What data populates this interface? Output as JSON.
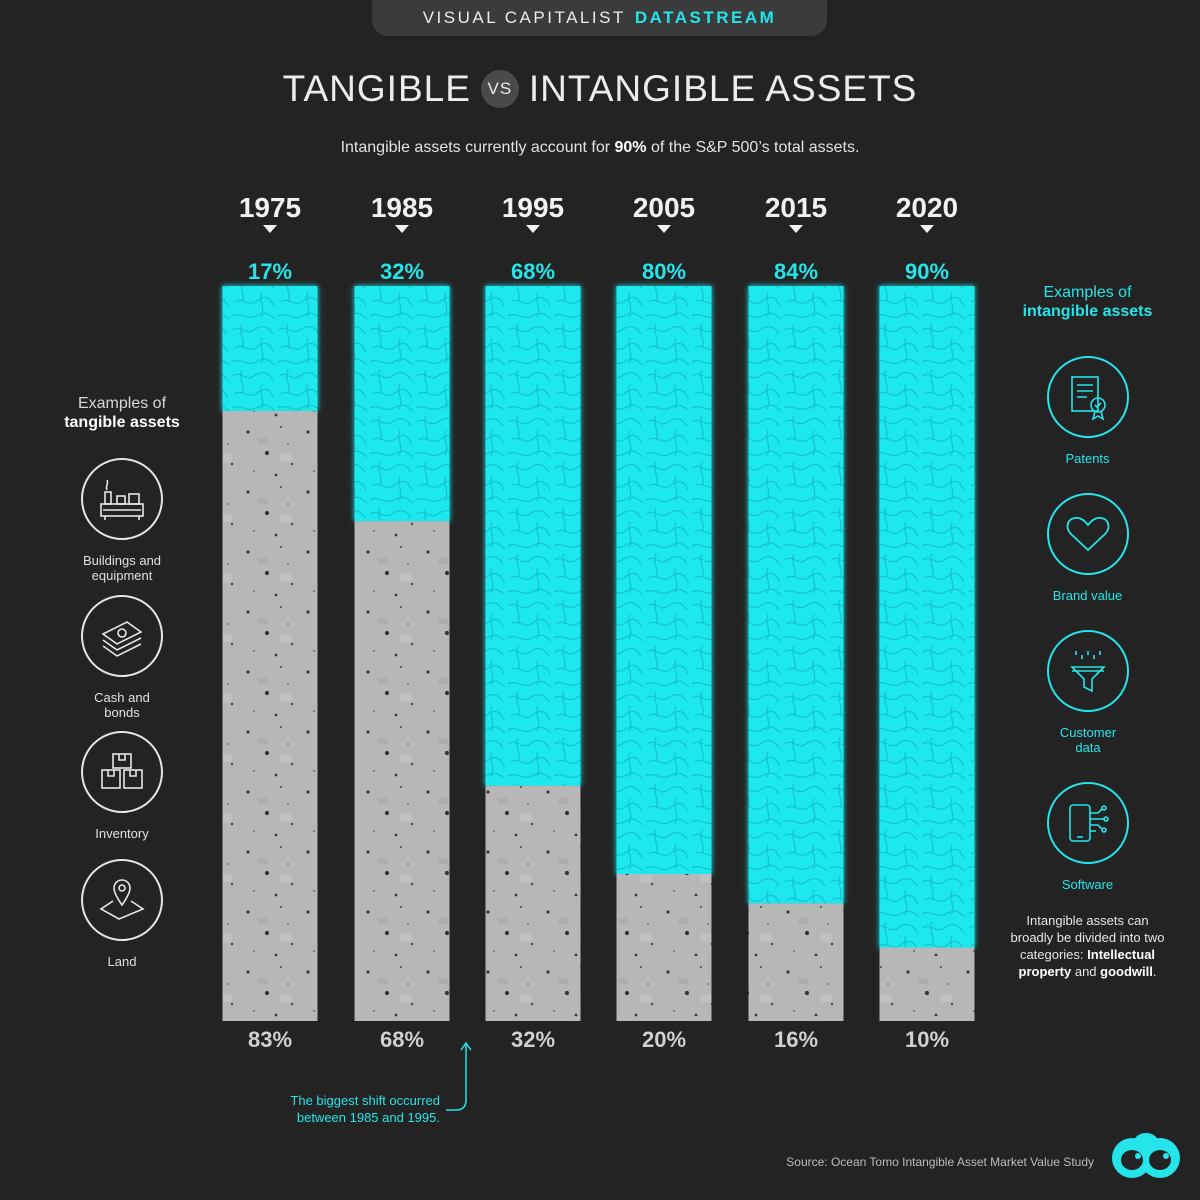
{
  "header": {
    "brand": "VISUAL CAPITALIST",
    "brand_accent": "DATASTREAM"
  },
  "title": {
    "part1": "TANGIBLE",
    "vs": "VS",
    "part2": "INTANGIBLE ASSETS"
  },
  "subtitle": {
    "pre": "Intangible assets currently account for ",
    "bold": "90%",
    "post": " of the S&P 500’s total assets."
  },
  "chart_data": {
    "type": "bar",
    "stacked": true,
    "categories": [
      "1975",
      "1985",
      "1995",
      "2005",
      "2015",
      "2020"
    ],
    "series": [
      {
        "values": [
          17,
          32,
          68,
          80,
          84,
          90
        ]
      },
      {
        "values": [
          83,
          68,
          32,
          20,
          16,
          10
        ]
      }
    ],
    "top_labels": [
      "17%",
      "32%",
      "68%",
      "80%",
      "84%",
      "90%"
    ],
    "bottom_labels": [
      "83%",
      "68%",
      "32%",
      "20%",
      "16%",
      "10%"
    ],
    "ylim": [
      0,
      100
    ],
    "colors": {
      "intangible": "#1ee8ee",
      "tangible": "#b9b9b9"
    }
  },
  "tangible": {
    "heading_line1": "Examples of",
    "heading_bold": "tangible assets",
    "items": [
      {
        "icon": "factory-icon",
        "label": "Buildings and equipment"
      },
      {
        "icon": "cash-icon",
        "label": "Cash and bonds"
      },
      {
        "icon": "boxes-icon",
        "label": "Inventory"
      },
      {
        "icon": "map-pin-icon",
        "label": "Land"
      }
    ]
  },
  "intangible": {
    "heading_line1": "Examples of",
    "heading_bold": "intangible assets",
    "items": [
      {
        "icon": "certificate-icon",
        "label": "Patents"
      },
      {
        "icon": "heart-icon",
        "label": "Brand value"
      },
      {
        "icon": "funnel-icon",
        "label": "Customer data"
      },
      {
        "icon": "phone-circuit-icon",
        "label": "Software"
      }
    ]
  },
  "note": {
    "text1": "Intangible assets can broadly be divided into two categories: ",
    "bold1": "Intellectual property",
    "text2": " and ",
    "bold2": "goodwill",
    "text3": "."
  },
  "shift_note": "The biggest shift occurred between 1985 and 1995.",
  "source": "Source: Ocean Tomo Intangible Asset Market Value Study"
}
